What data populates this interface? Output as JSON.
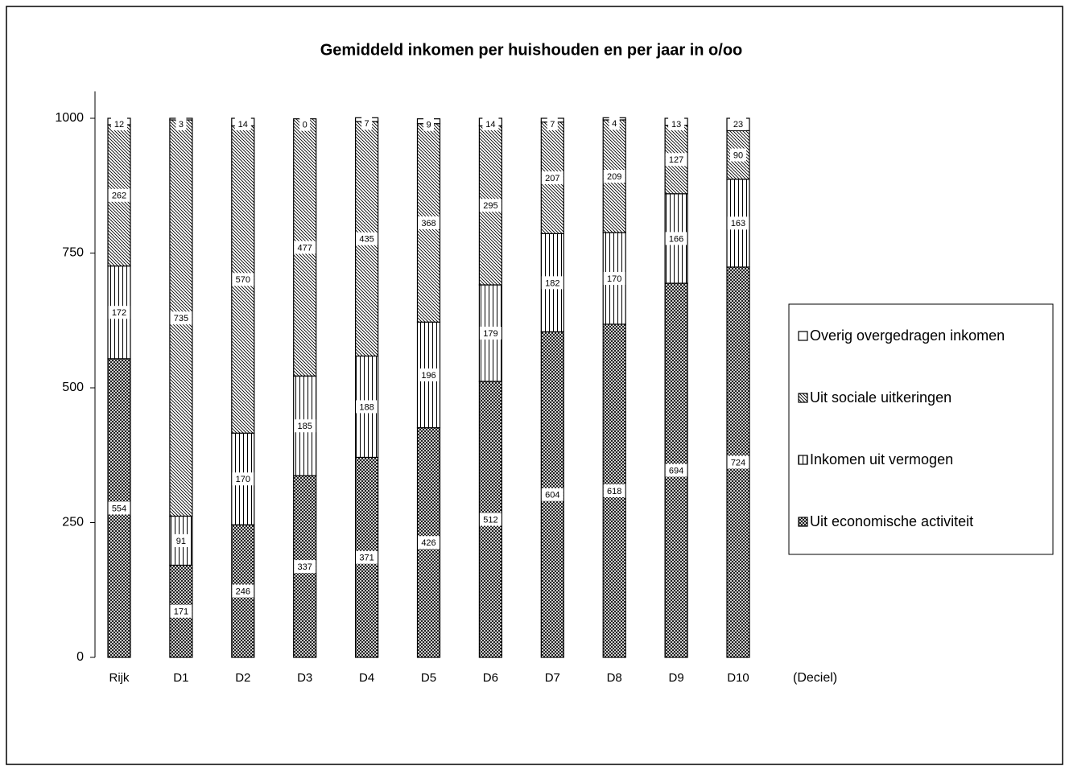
{
  "chart_data": {
    "type": "stacked_bar",
    "title": "Gemiddeld inkomen per huishouden en per jaar in o/oo",
    "x_label": "(Deciel)",
    "categories": [
      "Rijk",
      "D1",
      "D2",
      "D3",
      "D4",
      "D5",
      "D6",
      "D7",
      "D8",
      "D9",
      "D10"
    ],
    "series": [
      {
        "name": "Uit economische activiteit",
        "color": "#000000",
        "pattern": "crosshatch",
        "values": [
          554,
          171,
          246,
          337,
          371,
          426,
          512,
          604,
          618,
          694,
          724
        ]
      },
      {
        "name": "Inkomen uit vermogen",
        "color": "#000000",
        "pattern": "vertical",
        "values": [
          172,
          91,
          170,
          185,
          188,
          196,
          179,
          182,
          170,
          166,
          163
        ]
      },
      {
        "name": "Uit sociale uitkeringen",
        "color": "#000000",
        "pattern": "diagonal",
        "values": [
          262,
          735,
          570,
          477,
          435,
          368,
          295,
          207,
          209,
          127,
          90
        ]
      },
      {
        "name": "Overig overgedragen inkomen",
        "color": "#000000",
        "pattern": "none",
        "values": [
          12,
          3,
          14,
          0,
          7,
          9,
          14,
          7,
          4,
          13,
          23
        ]
      }
    ],
    "ylim": [
      0,
      1050
    ],
    "yticks": [
      0,
      250,
      500,
      750,
      1000
    ],
    "legend": "right"
  }
}
